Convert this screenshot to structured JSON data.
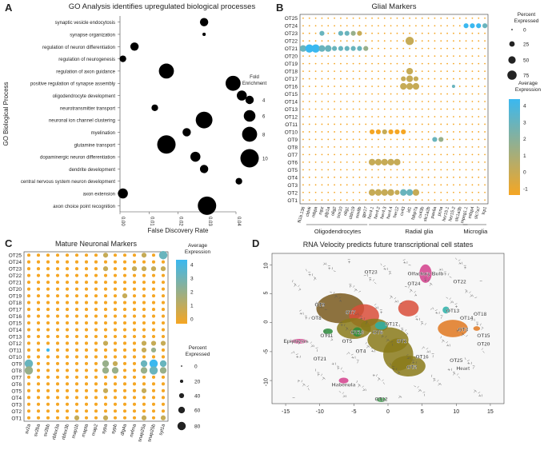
{
  "panels": {
    "A": {
      "letter": "A"
    },
    "B": {
      "letter": "B"
    },
    "C": {
      "letter": "C"
    },
    "D": {
      "letter": "D"
    }
  },
  "chart_data": [
    {
      "id": "A",
      "type": "scatter",
      "title": "GO Analysis identifies upregulated biological processes",
      "xlabel": "False Discovery Rate",
      "ylabel": "GO Biological Process",
      "xlim": [
        0,
        0.04
      ],
      "x_ticks": [
        "0.00",
        "0.01",
        "0.02",
        "0.03",
        "0.04"
      ],
      "categories": [
        "synaptic vesicle endocytosis",
        "synapse organization",
        "regulation of neuron differentiation",
        "regulation of neurogenesis",
        "regulation of axon guidance",
        "positive regulation of synapse assembly",
        "oligodendrocyte development",
        "neurotransmitter transport",
        "neuronal ion channel clustering",
        "myelination",
        "glutamine transport",
        "dopaminergic neuron differentiation",
        "dendrite development",
        "central nervous system neuron development",
        "axon extension",
        "axon choice point recognition"
      ],
      "points": [
        {
          "x": 0.029,
          "size": 4
        },
        {
          "x": 0.029,
          "size": 1
        },
        {
          "x": 0.005,
          "size": 4
        },
        {
          "x": 0.001,
          "size": 3
        },
        {
          "x": 0.016,
          "size": 8
        },
        {
          "x": 0.039,
          "size": 8
        },
        {
          "x": 0.042,
          "size": 5
        },
        {
          "x": 0.012,
          "size": 3
        },
        {
          "x": 0.029,
          "size": 9
        },
        {
          "x": 0.023,
          "size": 4
        },
        {
          "x": 0.016,
          "size": 10
        },
        {
          "x": 0.026,
          "size": 5
        },
        {
          "x": 0.029,
          "size": 4
        },
        {
          "x": 0.041,
          "size": 3
        },
        {
          "x": 0.001,
          "size": 5
        },
        {
          "x": 0.03,
          "size": 10
        }
      ],
      "legend": {
        "title": "Fold\nEnrichment",
        "values": [
          4,
          6,
          8,
          10
        ],
        "placement": "right"
      },
      "point_color": "#000000",
      "grid": false
    },
    {
      "id": "B",
      "type": "dotplot",
      "title": "Glial Markers",
      "rows": [
        "OT25",
        "OT24",
        "OT23",
        "OT22",
        "OT21",
        "OT20",
        "OT19",
        "OT18",
        "OT17",
        "OT16",
        "OT15",
        "OT14",
        "OT13",
        "OT12",
        "OT11",
        "OT10",
        "OT9",
        "OT8",
        "OT7",
        "OT6",
        "OT5",
        "OT4",
        "OT3",
        "OT2",
        "OT1"
      ],
      "genes": [
        "fli1b.136",
        "cldnk",
        "mbpa",
        "mpz",
        "plp1a",
        "olig2",
        "sox10",
        "olig1",
        "cldn19",
        "sox8b",
        "gpr17",
        "her4.1",
        "her4.2",
        "her4.3",
        "her4.4",
        "her12",
        "cx43",
        "id1",
        "fabp7a",
        "cx43b",
        "slc1a2b",
        "pax6a",
        "pcna",
        "her15.1",
        "her15.2",
        "slc1a3b",
        "mpeg1.1",
        "mfap4",
        "slc7a7",
        "lcp1"
      ],
      "gene_groups": [
        {
          "name": "Oligodendrocytes",
          "from": 1,
          "to": 10
        },
        {
          "name": "Radial glia",
          "from": 11,
          "to": 26
        },
        {
          "name": "Microglia",
          "from": 26,
          "to": 29
        }
      ],
      "highlights": [
        {
          "row": "OT21",
          "cols": [
            0,
            1,
            2,
            3,
            4,
            5,
            6,
            7,
            8,
            9,
            10
          ],
          "sizes": [
            3,
            4,
            4,
            3,
            3,
            2,
            2,
            2,
            2,
            2,
            2
          ],
          "levels": [
            3,
            4,
            4,
            3,
            3,
            3,
            3,
            3,
            3,
            3,
            2
          ]
        },
        {
          "row": "OT23",
          "cols": [
            3,
            6,
            7,
            8,
            9
          ],
          "sizes": [
            2,
            2,
            2,
            2,
            2
          ],
          "levels": [
            3,
            3,
            3,
            2,
            1
          ]
        },
        {
          "row": "OT24",
          "cols": [
            26,
            27,
            28,
            29
          ],
          "sizes": [
            2,
            2,
            2,
            2
          ],
          "levels": [
            4,
            4,
            4,
            3
          ]
        },
        {
          "row": "OT22",
          "cols": [
            17
          ],
          "sizes": [
            4
          ],
          "levels": [
            1
          ]
        },
        {
          "row": "OT2",
          "cols": [
            11,
            12,
            13,
            14,
            15,
            16,
            17,
            18
          ],
          "sizes": [
            3,
            3,
            3,
            3,
            2,
            3,
            3,
            3
          ],
          "levels": [
            1,
            1,
            1,
            1,
            1,
            3,
            3,
            1
          ]
        },
        {
          "row": "OT6",
          "cols": [
            11,
            12,
            13,
            14,
            15
          ],
          "sizes": [
            3,
            3,
            3,
            3,
            3
          ],
          "levels": [
            1,
            1,
            1,
            1,
            1
          ]
        },
        {
          "row": "OT10",
          "cols": [
            11,
            12,
            13,
            14,
            15,
            16
          ],
          "sizes": [
            2,
            2,
            2,
            2,
            2,
            2
          ],
          "levels": [
            0,
            0,
            1,
            0,
            0,
            0
          ]
        },
        {
          "row": "OT16",
          "cols": [
            16,
            17,
            18,
            24
          ],
          "sizes": [
            3,
            3,
            3,
            1
          ],
          "levels": [
            1,
            1,
            1,
            3
          ]
        },
        {
          "row": "OT17",
          "cols": [
            16,
            17,
            18
          ],
          "sizes": [
            2,
            3,
            2
          ],
          "levels": [
            1,
            1,
            1
          ]
        },
        {
          "row": "OT18",
          "cols": [
            17
          ],
          "sizes": [
            3
          ],
          "levels": [
            1
          ]
        },
        {
          "row": "OT9",
          "cols": [
            21,
            22
          ],
          "sizes": [
            2,
            2
          ],
          "levels": [
            3,
            2
          ]
        }
      ],
      "size_legend": {
        "title": "Percent\nExpressed",
        "values": [
          0,
          25,
          50,
          75
        ],
        "placement": "top-right"
      },
      "color_legend": {
        "title": "Average\nExpression",
        "values": [
          4,
          3,
          2,
          1,
          0,
          -1
        ],
        "placement": "right"
      },
      "colors": {
        "low": "#f5a623",
        "high": "#3ab8f0"
      }
    },
    {
      "id": "C",
      "type": "dotplot",
      "title": "Mature Neuronal Markers",
      "rows": [
        "OT25",
        "OT24",
        "OT23",
        "OT22",
        "OT21",
        "OT20",
        "OT19",
        "OT18",
        "OT17",
        "OT16",
        "OT15",
        "OT14",
        "OT13",
        "OT12",
        "OT11",
        "OT10",
        "OT9",
        "OT8",
        "OT7",
        "OT6",
        "OT5",
        "OT4",
        "OT3",
        "OT2",
        "OT1"
      ],
      "genes": [
        "sv2a",
        "sv2ba",
        "sv2bb",
        "rbfox3a",
        "rbfox3b",
        "map1b",
        "mapta",
        "map2",
        "sypa",
        "sypb",
        "dlg4a",
        "nefma",
        "snap25a",
        "snap25b",
        "syt1a"
      ],
      "highlights": [
        {
          "row": "OT25",
          "cols": [
            8,
            12,
            14
          ],
          "sizes": [
            2,
            2,
            4
          ],
          "levels": [
            1,
            1,
            3
          ]
        },
        {
          "row": "OT23",
          "cols": [
            8,
            11,
            12,
            13,
            14
          ],
          "sizes": [
            2,
            2,
            2,
            2,
            2
          ],
          "levels": [
            1,
            1,
            1,
            1,
            1
          ]
        },
        {
          "row": "OT19",
          "cols": [
            10
          ],
          "sizes": [
            2
          ],
          "levels": [
            1
          ]
        },
        {
          "row": "OT12",
          "cols": [
            8,
            12,
            13,
            14
          ],
          "sizes": [
            2,
            2,
            2,
            2
          ],
          "levels": [
            1,
            1,
            1,
            1
          ]
        },
        {
          "row": "OT11",
          "cols": [
            2,
            12,
            13
          ],
          "sizes": [
            1,
            2,
            2
          ],
          "levels": [
            4,
            1,
            2
          ]
        },
        {
          "row": "OT9",
          "cols": [
            0,
            8,
            9,
            12,
            13,
            14
          ],
          "sizes": [
            4,
            3,
            2,
            3,
            4,
            3
          ],
          "levels": [
            3,
            2,
            1,
            3,
            4,
            3
          ]
        },
        {
          "row": "OT8",
          "cols": [
            0,
            8,
            9,
            12,
            13,
            14
          ],
          "sizes": [
            4,
            3,
            3,
            3,
            4,
            3
          ],
          "levels": [
            2,
            2,
            2,
            2,
            3,
            2
          ]
        },
        {
          "row": "OT5",
          "cols": [
            8,
            12
          ],
          "sizes": [
            2,
            2
          ],
          "levels": [
            1,
            1
          ]
        },
        {
          "row": "OT1",
          "cols": [
            5,
            8,
            12,
            14
          ],
          "sizes": [
            2,
            2,
            2,
            2
          ],
          "levels": [
            1,
            1,
            1,
            1
          ]
        }
      ],
      "color_legend": {
        "title": "Average\nExpression",
        "values": [
          4,
          3,
          2,
          1,
          0
        ],
        "placement": "top-right"
      },
      "size_legend": {
        "title": "Percent\nExpressed",
        "values": [
          0,
          20,
          40,
          60,
          80
        ],
        "placement": "right"
      },
      "colors": {
        "low": "#f5a623",
        "high": "#3ab8f0"
      }
    },
    {
      "id": "D",
      "type": "scatter",
      "title": "RNA Velocity predicts future transcriptional cell states",
      "xlim": [
        -17,
        17
      ],
      "ylim": [
        -14,
        12
      ],
      "x_ticks": [
        -15,
        -10,
        -5,
        0,
        5,
        10,
        15
      ],
      "y_ticks": [
        10,
        5,
        0,
        -5,
        -10
      ],
      "cluster_labels": [
        {
          "label": "OT23",
          "x": -2.5,
          "y": 8.5
        },
        {
          "label": "Olfactory Bulb",
          "x": 5.5,
          "y": 8.2
        },
        {
          "label": "OT24",
          "x": 3.8,
          "y": 6.5
        },
        {
          "label": "OT22",
          "x": 10.5,
          "y": 6.8
        },
        {
          "label": "OT9",
          "x": -10,
          "y": 2.8
        },
        {
          "label": "OT7",
          "x": -5.5,
          "y": 1.5
        },
        {
          "label": "OT8",
          "x": -10.5,
          "y": 0.5
        },
        {
          "label": "OT13",
          "x": 9.5,
          "y": 1.8
        },
        {
          "label": "OT18",
          "x": 13.5,
          "y": 1.2
        },
        {
          "label": "OT14",
          "x": 11.5,
          "y": 0.5
        },
        {
          "label": "OT17",
          "x": 0.5,
          "y": -0.5
        },
        {
          "label": "OT3",
          "x": 11,
          "y": -1.5
        },
        {
          "label": "OT15",
          "x": 14,
          "y": -2.5
        },
        {
          "label": "OT11",
          "x": -9,
          "y": -2.5
        },
        {
          "label": "OT10",
          "x": -4.5,
          "y": -2
        },
        {
          "label": "OT6",
          "x": -1.5,
          "y": -2
        },
        {
          "label": "OT5",
          "x": -6,
          "y": -3.5
        },
        {
          "label": "OT1",
          "x": 2,
          "y": -3.5
        },
        {
          "label": "OT20",
          "x": 14,
          "y": -4
        },
        {
          "label": "Epiphysis",
          "x": -13.5,
          "y": -3.5
        },
        {
          "label": "OT4",
          "x": -4,
          "y": -5.2
        },
        {
          "label": "OT21",
          "x": -10,
          "y": -6.5
        },
        {
          "label": "OT16",
          "x": 5,
          "y": -6.2
        },
        {
          "label": "OT25",
          "x": 10,
          "y": -6.8
        },
        {
          "label": "OT2",
          "x": 3.5,
          "y": -8
        },
        {
          "label": "Heart",
          "x": 11,
          "y": -8.2
        },
        {
          "label": "Habenula",
          "x": -6.5,
          "y": -11
        },
        {
          "label": "OT12",
          "x": -1,
          "y": -13.5
        }
      ],
      "colors": {
        "brown": "#7a5a1e",
        "olive": "#8a7a1a",
        "red": "#d94d3a",
        "orange": "#e07820",
        "green": "#2a8c3a",
        "teal": "#2ab0a8",
        "pink": "#d43f8c",
        "grey": "#bdbdbd"
      }
    }
  ]
}
